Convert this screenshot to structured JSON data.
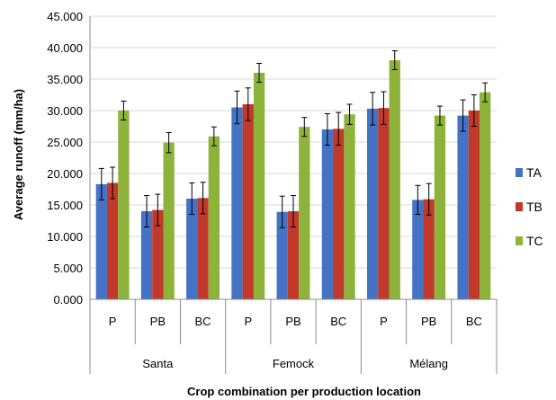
{
  "chart_data": {
    "type": "bar",
    "title": "",
    "ylabel": "Average runoff (mm/ha)",
    "xlabel": "Crop combination per production location",
    "ylim": [
      0,
      45
    ],
    "yticks": [
      "0.000",
      "5.000",
      "10.000",
      "15.000",
      "20.000",
      "25.000",
      "30.000",
      "35.000",
      "40.000",
      "45.000"
    ],
    "groups": [
      "Santa",
      "Femock",
      "Mélang"
    ],
    "subcategories": [
      "P",
      "PB",
      "BC"
    ],
    "legend_position": "right",
    "colors": [
      "#4472C4",
      "#C0392B",
      "#8DB33A"
    ],
    "series": [
      {
        "name": "TA",
        "values": [
          18.3,
          14.0,
          16.0,
          30.5,
          13.9,
          27.0,
          30.3,
          15.8,
          29.2
        ],
        "errors": [
          2.5,
          2.5,
          2.5,
          2.6,
          2.5,
          2.5,
          2.6,
          2.3,
          2.5
        ]
      },
      {
        "name": "TB",
        "values": [
          18.5,
          14.2,
          16.1,
          31.0,
          14.0,
          27.1,
          30.4,
          15.9,
          30.0
        ],
        "errors": [
          2.5,
          2.5,
          2.5,
          2.6,
          2.5,
          2.6,
          2.6,
          2.5,
          2.5
        ]
      },
      {
        "name": "TC",
        "values": [
          30.0,
          24.9,
          25.9,
          36.0,
          27.4,
          29.4,
          38.0,
          29.2,
          32.9
        ],
        "errors": [
          1.5,
          1.6,
          1.5,
          1.5,
          1.5,
          1.6,
          1.5,
          1.5,
          1.5
        ]
      }
    ]
  }
}
